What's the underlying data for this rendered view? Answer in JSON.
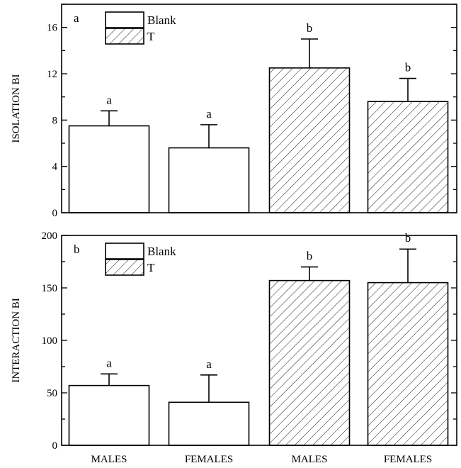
{
  "categories": [
    "MALES",
    "FEMALES",
    "MALES",
    "FEMALES"
  ],
  "chart_data": [
    {
      "type": "bar",
      "panel_label": "a",
      "ylabel": "ISOLATION BI",
      "ylim": [
        0,
        18
      ],
      "yticks": [
        0,
        4,
        8,
        12,
        16
      ],
      "minor_tick_step": 2,
      "legend": {
        "position": "top-left",
        "entries": [
          {
            "label": "Blank",
            "fill": "blank"
          },
          {
            "label": "T",
            "fill": "hatched"
          }
        ]
      },
      "bars": [
        {
          "category": "MALES",
          "treatment": "Blank",
          "value": 7.5,
          "error": 1.3,
          "sig": "a"
        },
        {
          "category": "FEMALES",
          "treatment": "Blank",
          "value": 5.6,
          "error": 2.0,
          "sig": "a"
        },
        {
          "category": "MALES",
          "treatment": "T",
          "value": 12.5,
          "error": 2.5,
          "sig": "b"
        },
        {
          "category": "FEMALES",
          "treatment": "T",
          "value": 9.6,
          "error": 2.0,
          "sig": "b"
        }
      ]
    },
    {
      "type": "bar",
      "panel_label": "b",
      "ylabel": "INTERACTION BI",
      "ylim": [
        0,
        200
      ],
      "yticks": [
        0,
        50,
        100,
        150,
        200
      ],
      "minor_tick_step": 25,
      "legend": {
        "position": "top-left",
        "entries": [
          {
            "label": "Blank",
            "fill": "blank"
          },
          {
            "label": "T",
            "fill": "hatched"
          }
        ]
      },
      "bars": [
        {
          "category": "MALES",
          "treatment": "Blank",
          "value": 57,
          "error": 11,
          "sig": "a"
        },
        {
          "category": "FEMALES",
          "treatment": "Blank",
          "value": 41,
          "error": 26,
          "sig": "a"
        },
        {
          "category": "MALES",
          "treatment": "T",
          "value": 157,
          "error": 13,
          "sig": "b"
        },
        {
          "category": "FEMALES",
          "treatment": "T",
          "value": 155,
          "error": 32,
          "sig": "b"
        }
      ]
    }
  ]
}
